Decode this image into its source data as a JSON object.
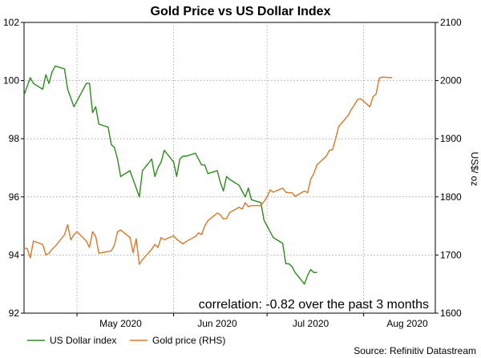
{
  "chart_data": {
    "type": "line",
    "title": "Gold Price vs US Dollar Index",
    "xlabel": "",
    "ylabel_left": "",
    "ylabel_right": "US$/ oz",
    "ylim_left": [
      92,
      102
    ],
    "ylim_right": [
      1600,
      2100
    ],
    "yticks_left": [
      92,
      94,
      96,
      98,
      100,
      102
    ],
    "yticks_right": [
      1600,
      1700,
      1800,
      1900,
      2000,
      2100
    ],
    "x_start": "2020-04-14",
    "x_end": "2020-08-24",
    "x_ticks": [
      {
        "label": "May 2020",
        "date": "2020-05-15"
      },
      {
        "label": "Jun 2020",
        "date": "2020-06-15"
      },
      {
        "label": "Jul 2020",
        "date": "2020-07-15"
      },
      {
        "label": "Aug 2020",
        "date": "2020-08-15"
      }
    ],
    "series": [
      {
        "name": "US Dollar index",
        "axis": "left",
        "color": "#2e8b1f",
        "points": [
          [
            "2020-04-14",
            99.5
          ],
          [
            "2020-04-15",
            99.8
          ],
          [
            "2020-04-16",
            100.1
          ],
          [
            "2020-04-17",
            99.9
          ],
          [
            "2020-04-20",
            99.7
          ],
          [
            "2020-04-21",
            100.2
          ],
          [
            "2020-04-22",
            99.9
          ],
          [
            "2020-04-23",
            100.3
          ],
          [
            "2020-04-24",
            100.5
          ],
          [
            "2020-04-27",
            100.4
          ],
          [
            "2020-04-28",
            99.7
          ],
          [
            "2020-04-29",
            99.4
          ],
          [
            "2020-04-30",
            99.1
          ],
          [
            "2020-05-01",
            99.3
          ],
          [
            "2020-05-04",
            99.9
          ],
          [
            "2020-05-05",
            99.9
          ],
          [
            "2020-05-06",
            98.9
          ],
          [
            "2020-05-07",
            99.1
          ],
          [
            "2020-05-08",
            98.5
          ],
          [
            "2020-05-11",
            98.4
          ],
          [
            "2020-05-12",
            97.8
          ],
          [
            "2020-05-13",
            97.7
          ],
          [
            "2020-05-14",
            97.3
          ],
          [
            "2020-05-15",
            96.7
          ],
          [
            "2020-05-18",
            96.9
          ],
          [
            "2020-05-19",
            96.6
          ],
          [
            "2020-05-20",
            96.3
          ],
          [
            "2020-05-21",
            96.0
          ],
          [
            "2020-05-22",
            96.9
          ],
          [
            "2020-05-25",
            97.3
          ],
          [
            "2020-05-26",
            96.7
          ],
          [
            "2020-05-27",
            97.0
          ],
          [
            "2020-05-28",
            97.2
          ],
          [
            "2020-05-29",
            97.6
          ],
          [
            "2020-06-01",
            97.2
          ],
          [
            "2020-06-02",
            96.7
          ],
          [
            "2020-06-03",
            97.3
          ],
          [
            "2020-06-04",
            97.4
          ],
          [
            "2020-06-05",
            97.4
          ],
          [
            "2020-06-08",
            97.5
          ],
          [
            "2020-06-09",
            97.3
          ],
          [
            "2020-06-10",
            97.1
          ],
          [
            "2020-06-11",
            97.1
          ],
          [
            "2020-06-12",
            96.8
          ],
          [
            "2020-06-15",
            96.9
          ],
          [
            "2020-06-16",
            96.5
          ],
          [
            "2020-06-17",
            96.2
          ],
          [
            "2020-06-18",
            96.7
          ],
          [
            "2020-06-19",
            96.6
          ],
          [
            "2020-06-22",
            96.4
          ],
          [
            "2020-06-23",
            96.2
          ],
          [
            "2020-06-24",
            96.0
          ],
          [
            "2020-06-25",
            96.3
          ],
          [
            "2020-06-26",
            95.9
          ],
          [
            "2020-06-29",
            95.8
          ],
          [
            "2020-06-30",
            95.2
          ],
          [
            "2020-07-01",
            95.0
          ],
          [
            "2020-07-02",
            94.8
          ],
          [
            "2020-07-03",
            94.6
          ],
          [
            "2020-07-06",
            94.4
          ],
          [
            "2020-07-07",
            93.7
          ],
          [
            "2020-07-08",
            93.7
          ],
          [
            "2020-07-09",
            93.6
          ],
          [
            "2020-07-10",
            93.4
          ],
          [
            "2020-07-13",
            93.0
          ],
          [
            "2020-07-14",
            93.3
          ],
          [
            "2020-07-15",
            93.5
          ],
          [
            "2020-07-16",
            93.4
          ],
          [
            "2020-07-17",
            93.4
          ]
        ]
      },
      {
        "name": "Gold price (RHS)",
        "axis": "right",
        "color": "#d8782a",
        "points": [
          [
            "2020-04-14",
            1712
          ],
          [
            "2020-04-15",
            1711
          ],
          [
            "2020-04-16",
            1695
          ],
          [
            "2020-04-17",
            1724
          ],
          [
            "2020-04-20",
            1718
          ],
          [
            "2020-04-21",
            1700
          ],
          [
            "2020-04-22",
            1703
          ],
          [
            "2020-04-23",
            1710
          ],
          [
            "2020-04-24",
            1715
          ],
          [
            "2020-04-27",
            1735
          ],
          [
            "2020-04-28",
            1752
          ],
          [
            "2020-04-29",
            1726
          ],
          [
            "2020-04-30",
            1735
          ],
          [
            "2020-05-01",
            1740
          ],
          [
            "2020-05-04",
            1724
          ],
          [
            "2020-05-05",
            1713
          ],
          [
            "2020-05-06",
            1740
          ],
          [
            "2020-05-07",
            1732
          ],
          [
            "2020-05-08",
            1703
          ],
          [
            "2020-05-11",
            1706
          ],
          [
            "2020-05-12",
            1707
          ],
          [
            "2020-05-13",
            1717
          ],
          [
            "2020-05-14",
            1740
          ],
          [
            "2020-05-15",
            1743
          ],
          [
            "2020-05-18",
            1730
          ],
          [
            "2020-05-19",
            1704
          ],
          [
            "2020-05-20",
            1728
          ],
          [
            "2020-05-21",
            1684
          ],
          [
            "2020-05-22",
            1692
          ],
          [
            "2020-05-25",
            1710
          ],
          [
            "2020-05-26",
            1718
          ],
          [
            "2020-05-27",
            1713
          ],
          [
            "2020-05-28",
            1730
          ],
          [
            "2020-05-29",
            1726
          ],
          [
            "2020-06-01",
            1733
          ],
          [
            "2020-06-02",
            1727
          ],
          [
            "2020-06-03",
            1723
          ],
          [
            "2020-06-04",
            1719
          ],
          [
            "2020-06-05",
            1723
          ],
          [
            "2020-06-08",
            1732
          ],
          [
            "2020-06-09",
            1738
          ],
          [
            "2020-06-10",
            1735
          ],
          [
            "2020-06-11",
            1750
          ],
          [
            "2020-06-12",
            1759
          ],
          [
            "2020-06-15",
            1772
          ],
          [
            "2020-06-16",
            1769
          ],
          [
            "2020-06-17",
            1762
          ],
          [
            "2020-06-18",
            1763
          ],
          [
            "2020-06-19",
            1773
          ],
          [
            "2020-06-22",
            1782
          ],
          [
            "2020-06-23",
            1779
          ],
          [
            "2020-06-24",
            1790
          ],
          [
            "2020-06-25",
            1783
          ],
          [
            "2020-06-26",
            1785
          ],
          [
            "2020-06-29",
            1785
          ],
          [
            "2020-06-30",
            1792
          ],
          [
            "2020-07-01",
            1800
          ],
          [
            "2020-07-02",
            1812
          ],
          [
            "2020-07-03",
            1808
          ],
          [
            "2020-07-06",
            1815
          ],
          [
            "2020-07-07",
            1808
          ],
          [
            "2020-07-08",
            1807
          ],
          [
            "2020-07-09",
            1807
          ],
          [
            "2020-07-10",
            1801
          ],
          [
            "2020-07-13",
            1810
          ],
          [
            "2020-07-14",
            1807
          ],
          [
            "2020-07-15",
            1830
          ],
          [
            "2020-07-16",
            1840
          ],
          [
            "2020-07-17",
            1855
          ],
          [
            "2020-07-20",
            1870
          ],
          [
            "2020-07-21",
            1880
          ],
          [
            "2020-07-22",
            1881
          ],
          [
            "2020-07-23",
            1900
          ],
          [
            "2020-07-24",
            1921
          ],
          [
            "2020-07-27",
            1940
          ],
          [
            "2020-07-28",
            1950
          ],
          [
            "2020-07-29",
            1958
          ],
          [
            "2020-07-30",
            1967
          ],
          [
            "2020-07-31",
            1969
          ],
          [
            "2020-08-03",
            1955
          ],
          [
            "2020-08-04",
            1972
          ],
          [
            "2020-08-05",
            1977
          ],
          [
            "2020-08-06",
            2004
          ],
          [
            "2020-08-07",
            2006
          ],
          [
            "2020-08-10",
            2005
          ]
        ]
      }
    ],
    "annotation": "correlation: -0.82 over the past 3 months",
    "source": "Source: Refinitiv Datastream",
    "legend_position": "bottom-left"
  }
}
